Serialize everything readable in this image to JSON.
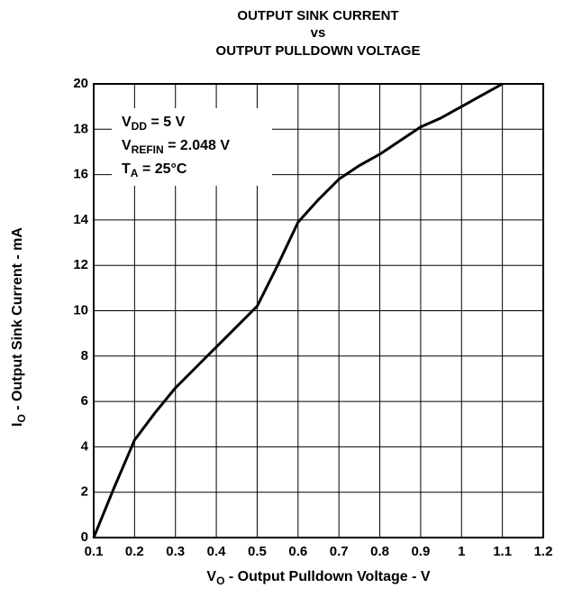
{
  "chart_data": {
    "type": "line",
    "title": [
      "OUTPUT SINK CURRENT",
      "vs",
      "OUTPUT PULLDOWN VOLTAGE"
    ],
    "x_label": {
      "main": "V",
      "sub": "O",
      "rest": " - Output Pulldown Voltage - V"
    },
    "y_label": {
      "main": "I",
      "sub": "O",
      "rest": " - Output Sink Current - mA"
    },
    "annotations": [
      {
        "main": "V",
        "sub": "DD",
        "rest": " = 5 V"
      },
      {
        "main": "V",
        "sub": "REFIN",
        "rest": " = 2.048 V"
      },
      {
        "main": "T",
        "sub": "A",
        "rest": " = 25°C"
      }
    ],
    "x": [
      0.1,
      0.15,
      0.2,
      0.25,
      0.3,
      0.35,
      0.4,
      0.45,
      0.5,
      0.55,
      0.6,
      0.65,
      0.7,
      0.75,
      0.8,
      0.85,
      0.9,
      0.95,
      1.0,
      1.05,
      1.1
    ],
    "series": [
      {
        "color": "#000000",
        "values": [
          0,
          2.2,
          4.3,
          5.5,
          6.6,
          7.5,
          8.4,
          9.3,
          10.2,
          12,
          13.9,
          14.9,
          15.8,
          16.4,
          16.9,
          17.5,
          18.1,
          18.5,
          19.0,
          19.5,
          20
        ]
      }
    ],
    "xlim": [
      0.1,
      1.2
    ],
    "xticks": [
      0.1,
      0.2,
      0.3,
      0.4,
      0.5,
      0.6,
      0.7,
      0.8,
      0.9,
      1,
      1.1,
      1.2
    ],
    "ylim": [
      0,
      20
    ],
    "yticks": [
      0,
      2,
      4,
      6,
      8,
      10,
      12,
      14,
      16,
      18,
      20
    ],
    "grid": true
  }
}
